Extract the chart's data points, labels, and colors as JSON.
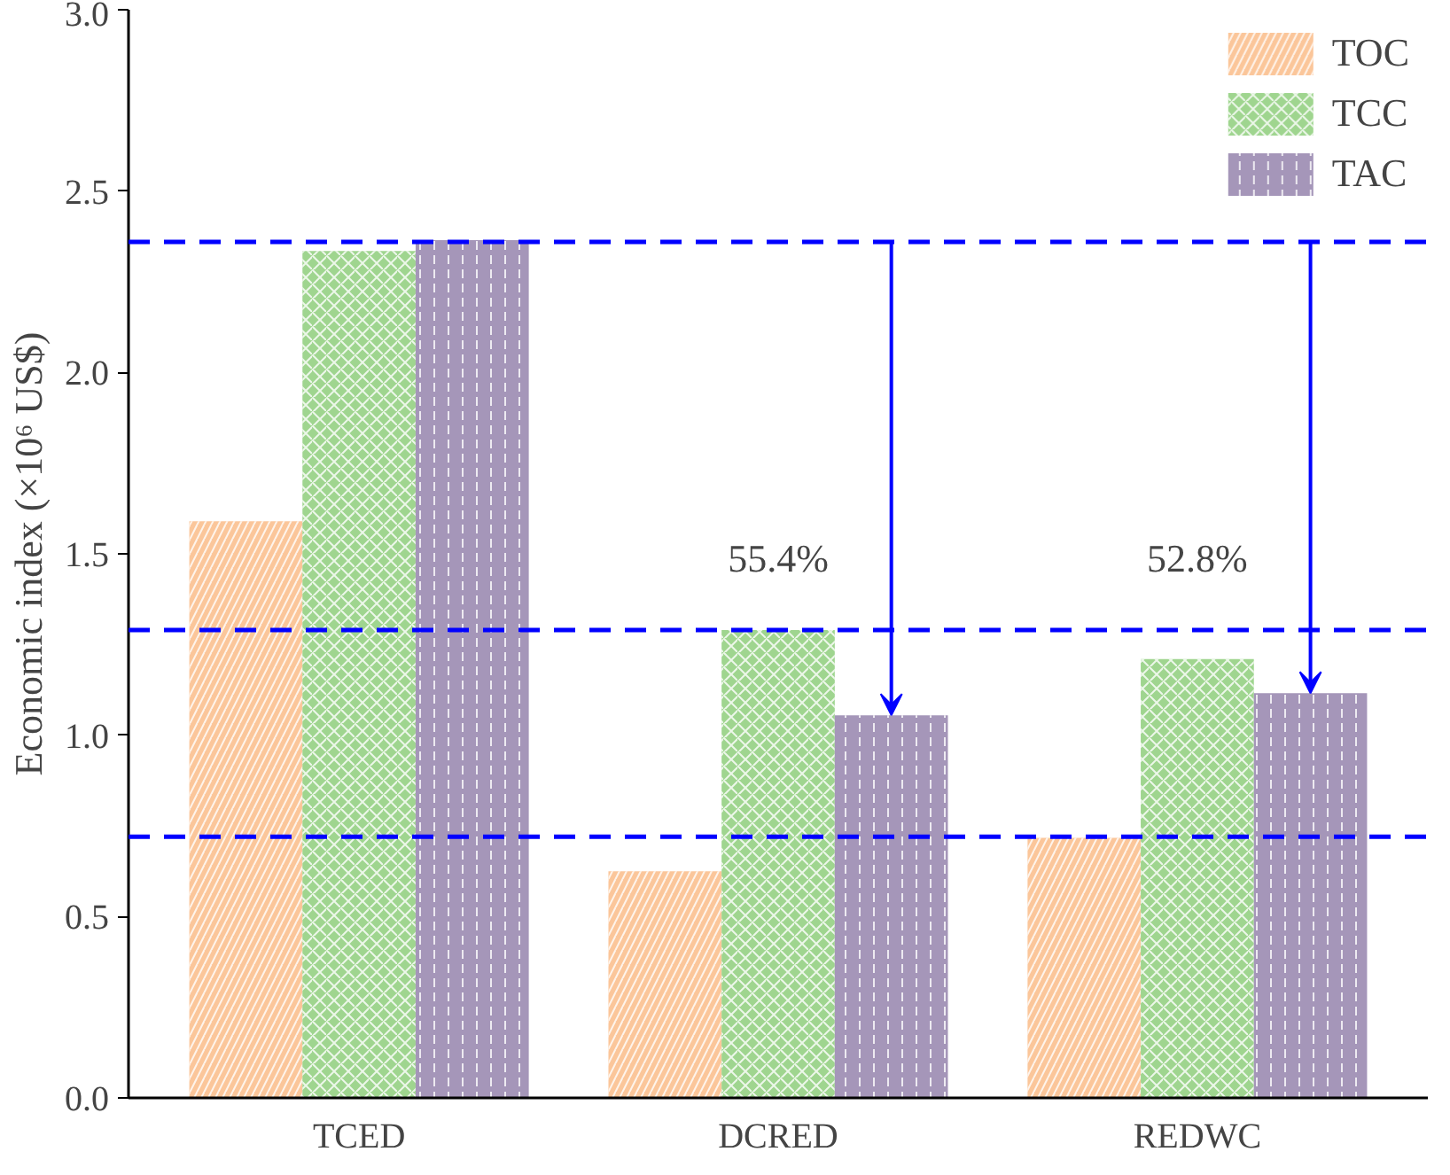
{
  "chart_data": {
    "type": "bar",
    "ylabel": "Economic index (×10⁶ US$)",
    "categories": [
      "TCED",
      "DCRED",
      "REDWC"
    ],
    "series": [
      {
        "name": "TOC",
        "color": "#fbc69a",
        "values": [
          1.59,
          0.625,
          0.717
        ]
      },
      {
        "name": "TCC",
        "color": "#9fd58f",
        "values": [
          2.335,
          1.29,
          1.21
        ]
      },
      {
        "name": "TAC",
        "color": "#a596b9",
        "values": [
          2.365,
          1.055,
          1.116
        ]
      }
    ],
    "ylim": [
      0,
      3.0
    ],
    "yticks": [
      {
        "value": 0,
        "label": "0.0"
      },
      0.5,
      {
        "value": 1,
        "label": "1.0"
      },
      1.5,
      {
        "value": 2,
        "label": "2.0"
      },
      2.5,
      {
        "value": 3,
        "label": "3.0"
      }
    ],
    "ref_lines": [
      {
        "axis": "y",
        "value": 2.36,
        "label": null,
        "color": "#0000ff",
        "line_style": "dashed"
      },
      {
        "axis": "y",
        "value": 1.29,
        "label": null,
        "color": "#0000ff",
        "line_style": "dashed"
      },
      {
        "axis": "y",
        "value": 0.72,
        "label": null,
        "color": "#0000ff",
        "line_style": "dashed"
      }
    ],
    "annotations": [
      "55.4%",
      "52.8%"
    ],
    "grid": false,
    "legend": "top right"
  }
}
